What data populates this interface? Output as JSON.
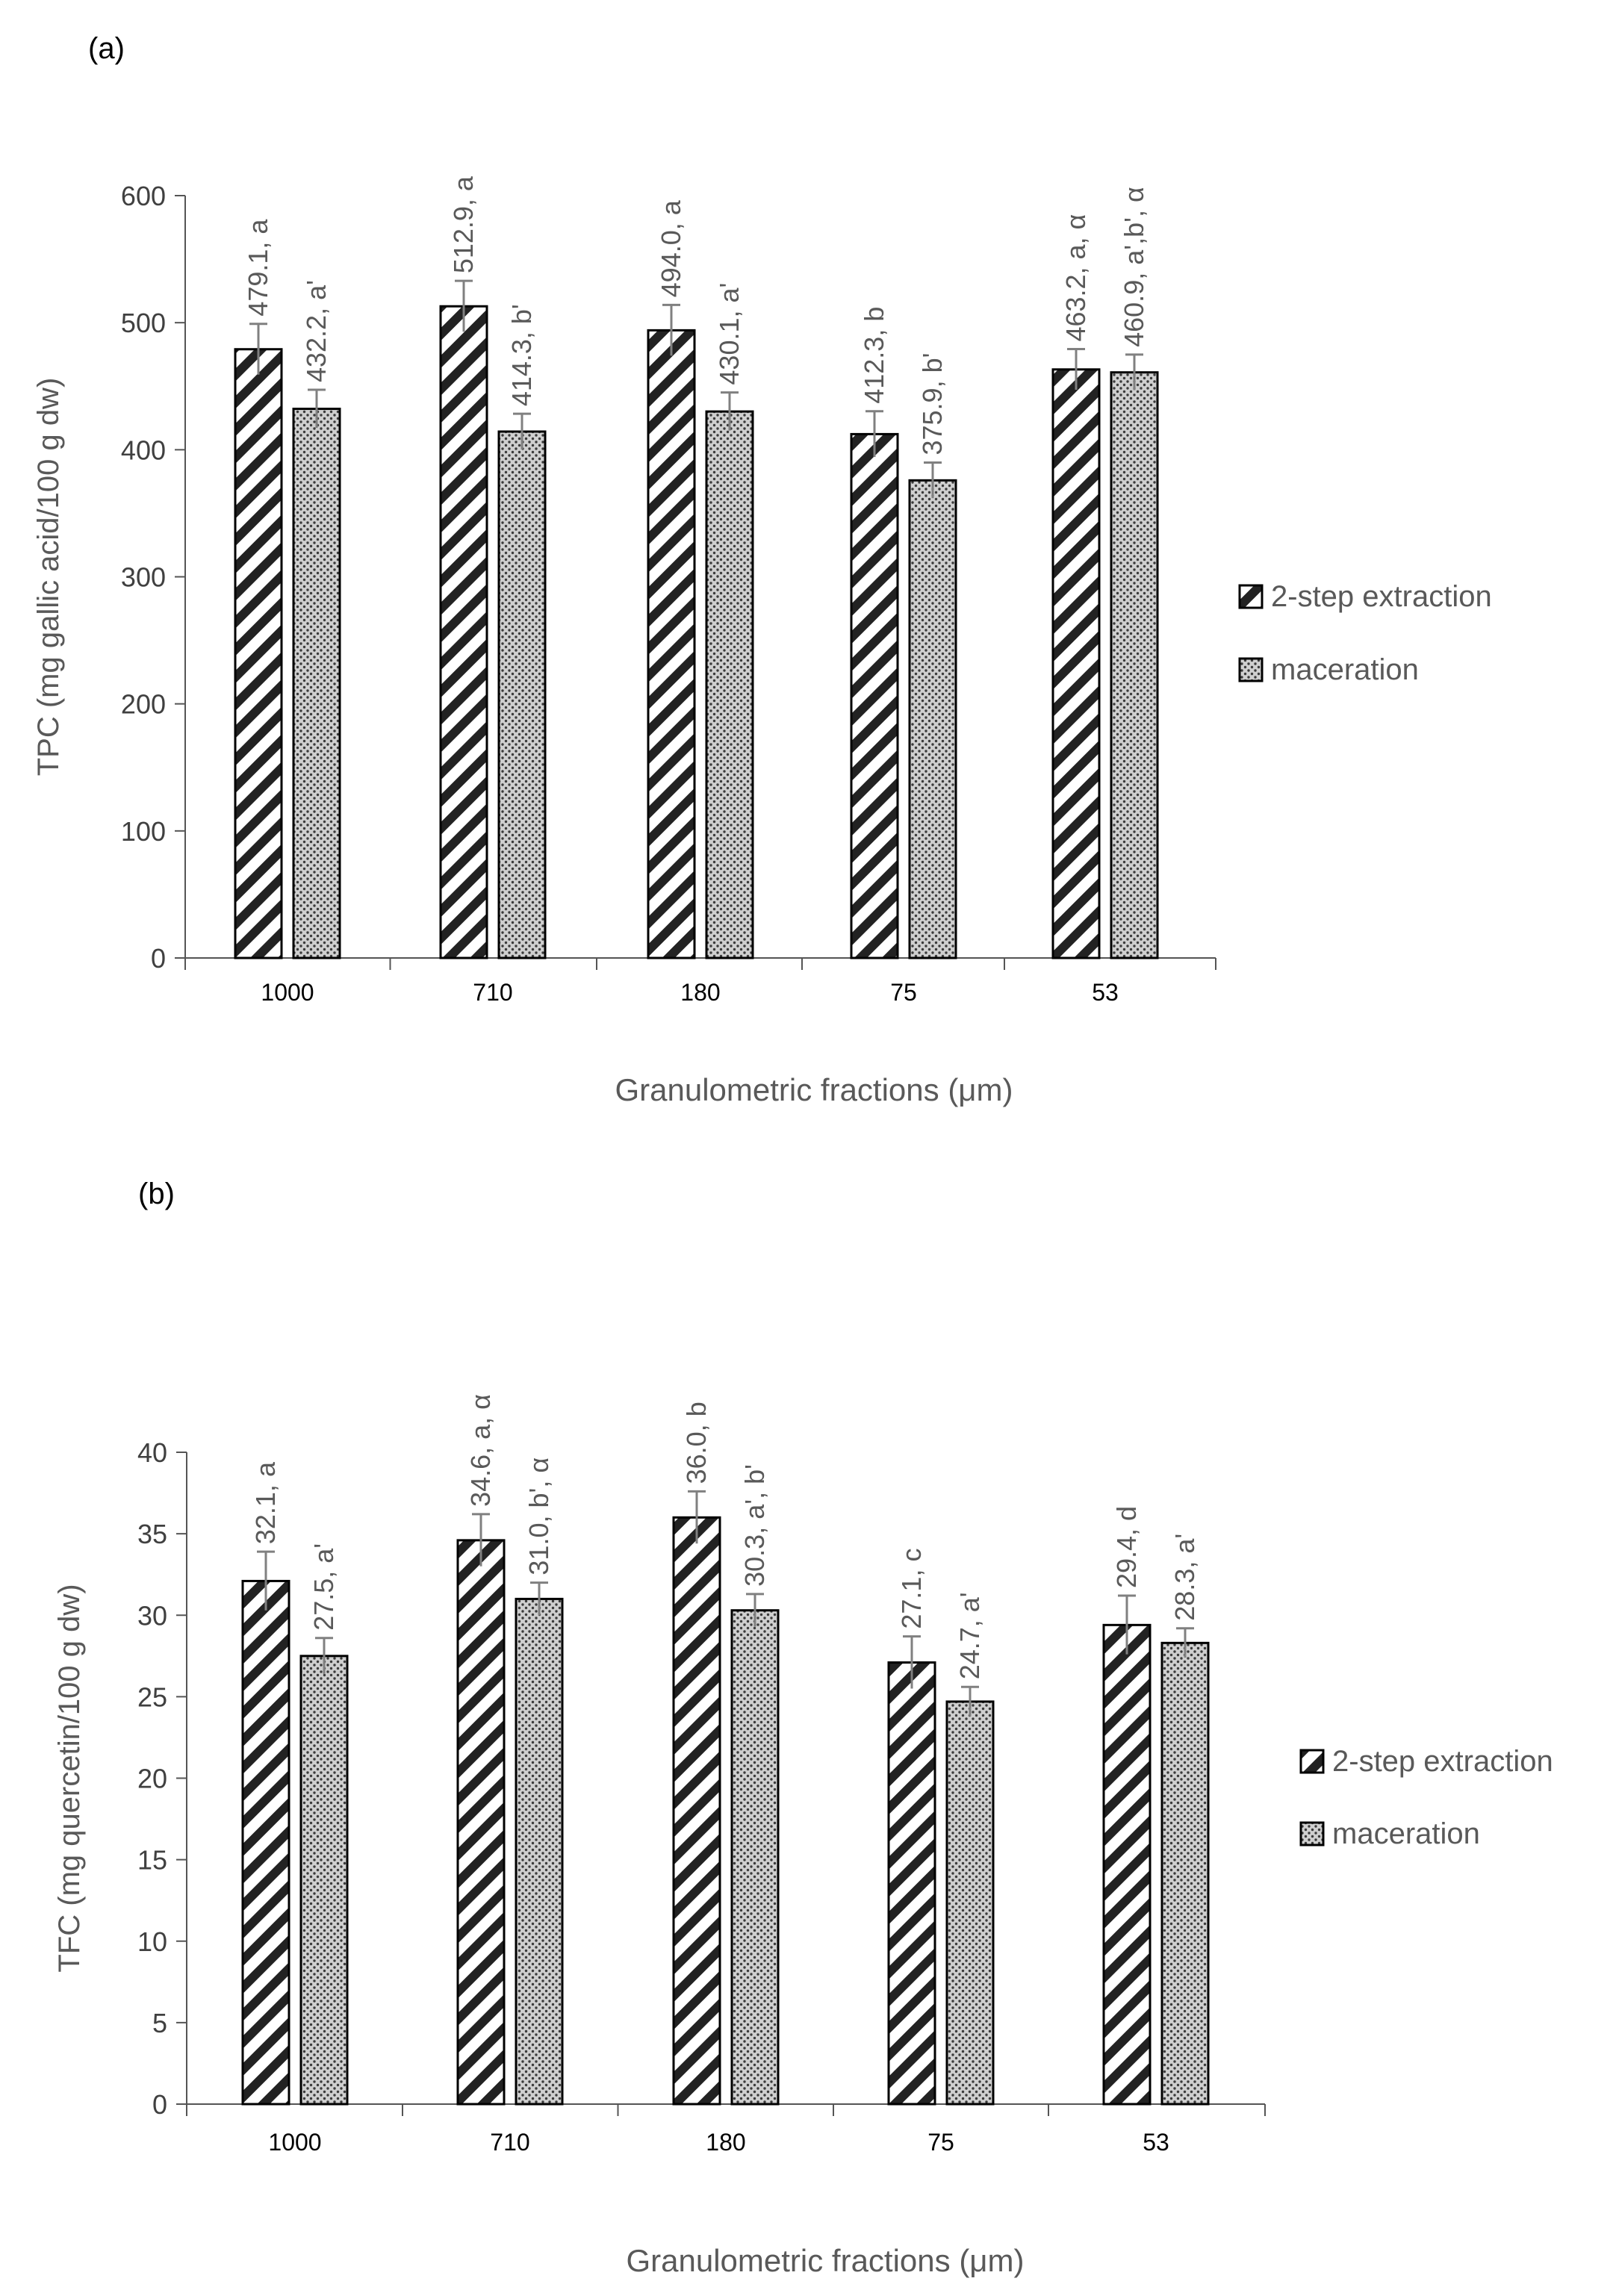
{
  "chart_data": [
    {
      "panel_label": "(a)",
      "type": "bar",
      "categories": [
        "1000",
        "710",
        "180",
        "75",
        "53"
      ],
      "series": [
        {
          "name": "2-step extraction",
          "values": [
            479.1,
            512.9,
            494.0,
            412.3,
            463.2
          ],
          "errors": [
            20,
            20,
            20,
            18,
            16
          ]
        },
        {
          "name": "maceration",
          "values": [
            432.2,
            414.3,
            430.1,
            375.9,
            460.9
          ],
          "errors": [
            15,
            14,
            15,
            14,
            14
          ]
        }
      ],
      "data_labels": [
        [
          "479.1, a",
          "512.9, a",
          "494.0, a",
          "412.3, b",
          "463.2, a, α"
        ],
        [
          "432.2, a'",
          "414.3, b'",
          "430.1, a'",
          "375.9, b'",
          "460.9, a',b', α"
        ]
      ],
      "xlabel": "Granulometric fractions (μm)",
      "ylabel": "TPC (mg gallic acid/100 g dw)",
      "ylim": [
        0,
        600
      ],
      "yticks": [
        0,
        100,
        200,
        300,
        400,
        500,
        600
      ],
      "grid": false,
      "legend_position": "right",
      "pattern_2_step": "diagonal-stripes",
      "pattern_maceration": "dotted"
    },
    {
      "panel_label": "(b)",
      "type": "bar",
      "categories": [
        "1000",
        "710",
        "180",
        "75",
        "53"
      ],
      "series": [
        {
          "name": "2-step extraction",
          "values": [
            32.1,
            34.6,
            36.0,
            27.1,
            29.4
          ],
          "errors": [
            1.8,
            1.6,
            1.6,
            1.6,
            1.8
          ]
        },
        {
          "name": "maceration",
          "values": [
            27.5,
            31.0,
            30.3,
            24.7,
            28.3
          ],
          "errors": [
            1.1,
            1.0,
            1.0,
            0.9,
            0.9
          ]
        }
      ],
      "data_labels": [
        [
          "32.1, a",
          "34.6, a, α",
          "36.0, b",
          "27.1, c",
          "29.4, d"
        ],
        [
          "27.5, a'",
          "31.0, b', α",
          "30.3, a', b'",
          "24.7, a'",
          "28.3, a'"
        ]
      ],
      "xlabel": "Granulometric fractions (μm)",
      "ylabel": "TFC (mg quercetin/100 g dw)",
      "ylim": [
        0,
        40
      ],
      "yticks": [
        0,
        5,
        10,
        15,
        20,
        25,
        30,
        35,
        40
      ],
      "grid": false,
      "legend_position": "right",
      "pattern_2_step": "diagonal-stripes",
      "pattern_maceration": "dotted"
    }
  ],
  "colors": {
    "axis": "#555555",
    "text": "#595959",
    "bar_border": "#000000",
    "stripe": "#222222",
    "leader_line": "#a6a6a6"
  }
}
